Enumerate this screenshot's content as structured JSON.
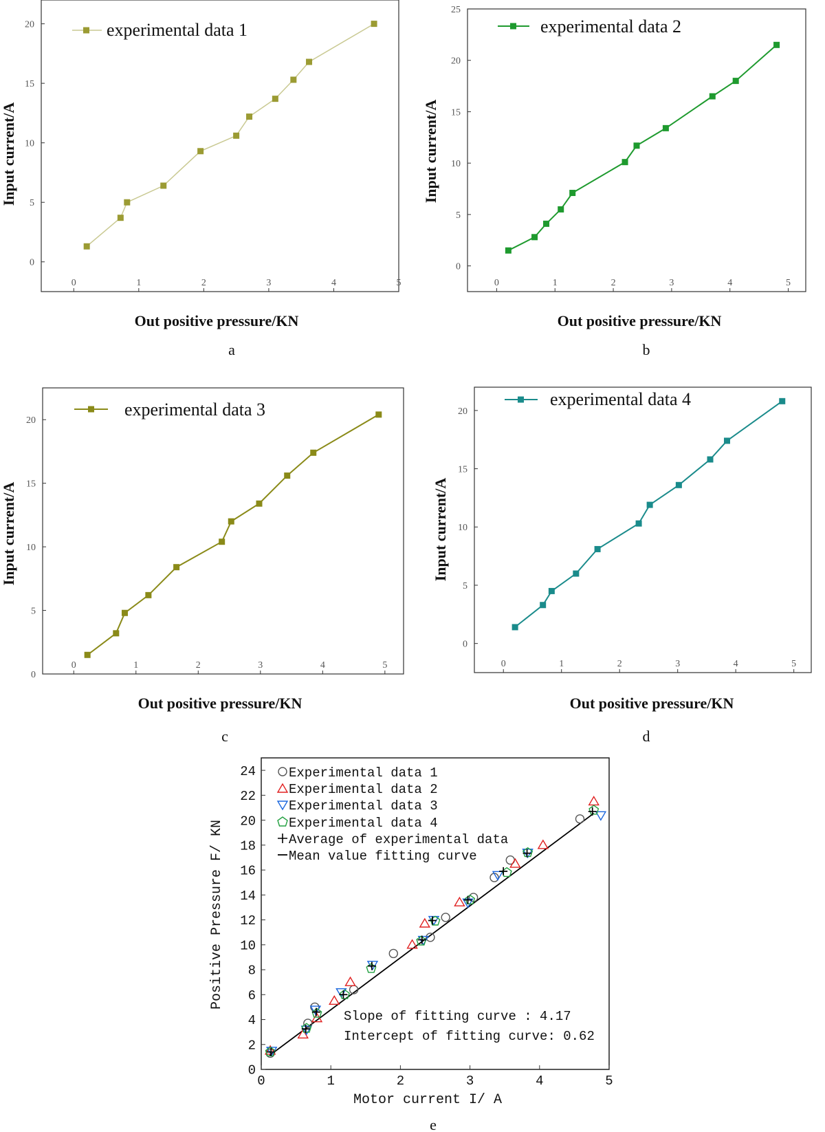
{
  "chart_data": [
    {
      "panel": "a",
      "type": "line",
      "xlabel": "Out positive pressure/KN",
      "ylabel": "Input current/A",
      "xlim": [
        -0.5,
        5
      ],
      "ylim": [
        -2.5,
        22
      ],
      "xticks": [
        0,
        1,
        2,
        3,
        4,
        5
      ],
      "yticks": [
        0,
        5,
        10,
        15,
        20
      ],
      "color": "#9b9b33",
      "line_color": "#c9c992",
      "legend": "experimental data 1",
      "series": [
        {
          "name": "experimental data 1",
          "x": [
            0.2,
            0.72,
            0.82,
            1.38,
            1.95,
            2.5,
            2.7,
            3.1,
            3.38,
            3.62,
            4.62
          ],
          "y": [
            1.3,
            3.7,
            5.0,
            6.4,
            9.3,
            10.6,
            12.2,
            13.7,
            15.3,
            16.8,
            20.0
          ]
        }
      ]
    },
    {
      "panel": "b",
      "type": "line",
      "xlabel": "Out positive pressure/KN",
      "ylabel": "Input current/A",
      "xlim": [
        -0.5,
        5.3
      ],
      "ylim": [
        -2.5,
        25
      ],
      "xticks": [
        0,
        1,
        2,
        3,
        4,
        5
      ],
      "yticks": [
        0,
        5,
        10,
        15,
        20,
        25
      ],
      "color": "#1e9a2e",
      "line_color": "#1e9a2e",
      "legend": "experimental data 2",
      "series": [
        {
          "name": "experimental data 2",
          "x": [
            0.2,
            0.65,
            0.85,
            1.1,
            1.3,
            2.2,
            2.4,
            2.9,
            3.7,
            4.1,
            4.8
          ],
          "y": [
            1.5,
            2.8,
            4.1,
            5.5,
            7.1,
            10.1,
            11.7,
            13.4,
            16.5,
            18.0,
            21.5
          ]
        }
      ]
    },
    {
      "panel": "c",
      "type": "line",
      "xlabel": "Out positive pressure/KN",
      "ylabel": "Input current/A",
      "xlim": [
        -0.5,
        5.3
      ],
      "ylim": [
        0,
        22.5
      ],
      "xticks": [
        0,
        1,
        2,
        3,
        4,
        5
      ],
      "yticks": [
        0,
        5,
        10,
        15,
        20
      ],
      "color": "#8a8a18",
      "line_color": "#8a8a18",
      "legend": "experimental data 3",
      "series": [
        {
          "name": "experimental data 3",
          "x": [
            0.22,
            0.68,
            0.82,
            1.2,
            1.65,
            2.38,
            2.53,
            2.98,
            3.43,
            3.85,
            4.9
          ],
          "y": [
            1.5,
            3.2,
            4.8,
            6.2,
            8.4,
            10.4,
            12.0,
            13.4,
            15.6,
            17.4,
            20.4
          ]
        }
      ]
    },
    {
      "panel": "d",
      "type": "line",
      "xlabel": "Out positive pressure/KN",
      "ylabel": "Input current/A",
      "xlim": [
        -0.5,
        5.3
      ],
      "ylim": [
        -2.5,
        22
      ],
      "xticks": [
        0,
        1,
        2,
        3,
        4,
        5
      ],
      "yticks": [
        0,
        5,
        10,
        15,
        20
      ],
      "color": "#1a8b8b",
      "line_color": "#1a8b8b",
      "legend": "experimental data 4",
      "series": [
        {
          "name": "experimental data 4",
          "x": [
            0.2,
            0.68,
            0.83,
            1.25,
            1.62,
            2.33,
            2.52,
            3.02,
            3.56,
            3.85,
            4.8
          ],
          "y": [
            1.4,
            3.3,
            4.5,
            6.0,
            8.1,
            10.3,
            11.9,
            13.6,
            15.8,
            17.4,
            20.8
          ]
        }
      ]
    },
    {
      "panel": "e",
      "type": "scatter",
      "xlabel": "Motor current I/ A",
      "ylabel": "Positive Pressure F/ KN",
      "xlim": [
        0,
        5
      ],
      "ylim": [
        0,
        25
      ],
      "xticks": [
        0,
        1,
        2,
        3,
        4,
        5
      ],
      "yticks": [
        0,
        2,
        4,
        6,
        8,
        10,
        12,
        14,
        16,
        18,
        20,
        22,
        24
      ],
      "legend": [
        "Experimental data 1",
        "Experimental data 2",
        "Experimental data 3",
        "Experimental data 4",
        "Average of experimental data",
        "Mean value fitting curve"
      ],
      "annotations": [
        "Slope of fitting curve : 4.17",
        "Intercept of fitting curve: 0.62"
      ],
      "fit": {
        "slope": 4.17,
        "intercept": 0.62,
        "x_range": [
          0.12,
          4.78
        ]
      },
      "series": [
        {
          "name": "Experimental data 1",
          "marker": "circle",
          "color": "#555555",
          "x": [
            0.13,
            0.67,
            0.77,
            1.33,
            1.9,
            2.43,
            2.65,
            3.05,
            3.35,
            3.58,
            4.58
          ],
          "y": [
            1.3,
            3.7,
            5.0,
            6.4,
            9.3,
            10.6,
            12.2,
            13.8,
            15.4,
            16.8,
            20.1
          ]
        },
        {
          "name": "Experimental data 2",
          "marker": "triangle-up",
          "color": "#e02020",
          "x": [
            0.13,
            0.6,
            0.8,
            1.05,
            1.28,
            2.17,
            2.35,
            2.85,
            3.65,
            4.05,
            4.78
          ],
          "y": [
            1.5,
            2.8,
            4.1,
            5.5,
            7.0,
            10.0,
            11.7,
            13.4,
            16.5,
            18.0,
            21.5
          ]
        },
        {
          "name": "Experimental data 3",
          "marker": "triangle-down",
          "color": "#1a66dd",
          "x": [
            0.15,
            0.65,
            0.78,
            1.15,
            1.6,
            2.33,
            2.48,
            2.97,
            3.4,
            3.83,
            4.88
          ],
          "y": [
            1.5,
            3.2,
            4.8,
            6.2,
            8.4,
            10.4,
            12.0,
            13.4,
            15.6,
            17.4,
            20.4
          ]
        },
        {
          "name": "Experimental data 4",
          "marker": "pentagon",
          "color": "#22a040",
          "x": [
            0.13,
            0.65,
            0.8,
            1.2,
            1.58,
            2.3,
            2.5,
            3.0,
            3.53,
            3.83,
            4.78
          ],
          "y": [
            1.4,
            3.3,
            4.5,
            6.0,
            8.1,
            10.3,
            11.9,
            13.6,
            15.8,
            17.4,
            20.8
          ]
        },
        {
          "name": "Average of experimental data",
          "marker": "plus",
          "color": "#000000",
          "x": [
            0.14,
            0.64,
            0.79,
            1.18,
            1.59,
            2.31,
            2.46,
            2.97,
            3.48,
            3.82,
            4.76
          ],
          "y": [
            1.4,
            3.25,
            4.6,
            6.0,
            8.3,
            10.4,
            11.95,
            13.6,
            15.9,
            17.35,
            20.7
          ]
        }
      ]
    }
  ],
  "captions": [
    "a",
    "b",
    "c",
    "d",
    "e"
  ]
}
